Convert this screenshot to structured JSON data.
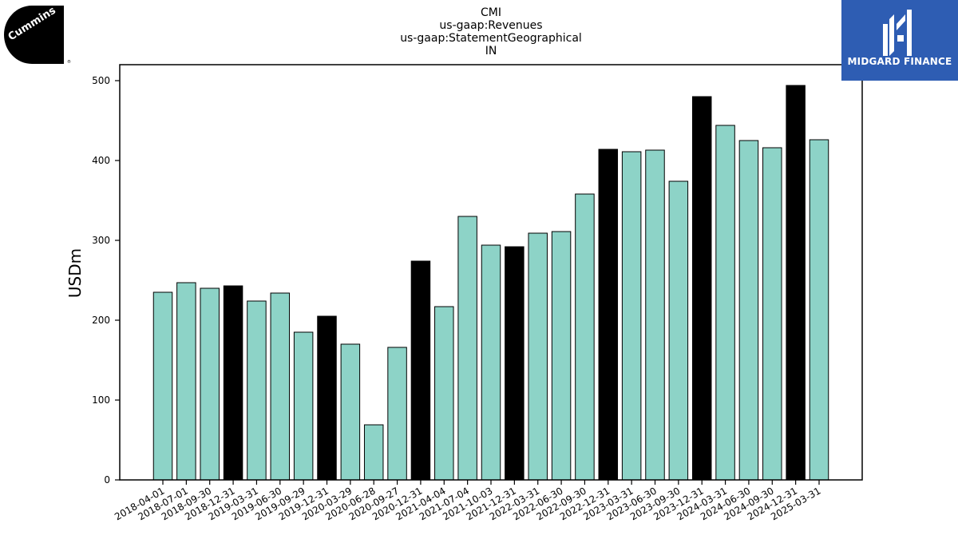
{
  "logos": {
    "left_brand": "Cummins",
    "right_brand": "MIDGARD FINANCE"
  },
  "colors": {
    "normal_bar": "#8dd3c7",
    "year_end_bar": "#000000",
    "brand_blue": "#2e5db3"
  },
  "chart_data": {
    "type": "bar",
    "title_lines": [
      "CMI",
      "us-gaap:Revenues",
      "us-gaap:StatementGeographical",
      "IN"
    ],
    "xlabel": "",
    "ylabel": "USDm",
    "ylim": [
      0,
      520
    ],
    "yticks": [
      0,
      100,
      200,
      300,
      400,
      500
    ],
    "categories": [
      "2018-04-01",
      "2018-07-01",
      "2018-09-30",
      "2018-12-31",
      "2019-03-31",
      "2019-06-30",
      "2019-09-29",
      "2019-12-31",
      "2020-03-29",
      "2020-06-28",
      "2020-09-27",
      "2020-12-31",
      "2021-04-04",
      "2021-07-04",
      "2021-10-03",
      "2021-12-31",
      "2022-03-31",
      "2022-06-30",
      "2022-09-30",
      "2022-12-31",
      "2023-03-31",
      "2023-06-30",
      "2023-09-30",
      "2023-12-31",
      "2024-03-31",
      "2024-06-30",
      "2024-09-30",
      "2024-12-31",
      "2025-03-31"
    ],
    "values": [
      235,
      247,
      240,
      243,
      224,
      234,
      185,
      205,
      170,
      69,
      166,
      274,
      217,
      330,
      294,
      292,
      309,
      311,
      358,
      414,
      411,
      413,
      374,
      480,
      444,
      425,
      416,
      494,
      426
    ],
    "highlight": [
      false,
      false,
      false,
      true,
      false,
      false,
      false,
      true,
      false,
      false,
      false,
      true,
      false,
      false,
      false,
      true,
      false,
      false,
      false,
      true,
      false,
      false,
      false,
      true,
      false,
      false,
      false,
      true,
      false
    ],
    "grid": false,
    "legend": "none"
  }
}
